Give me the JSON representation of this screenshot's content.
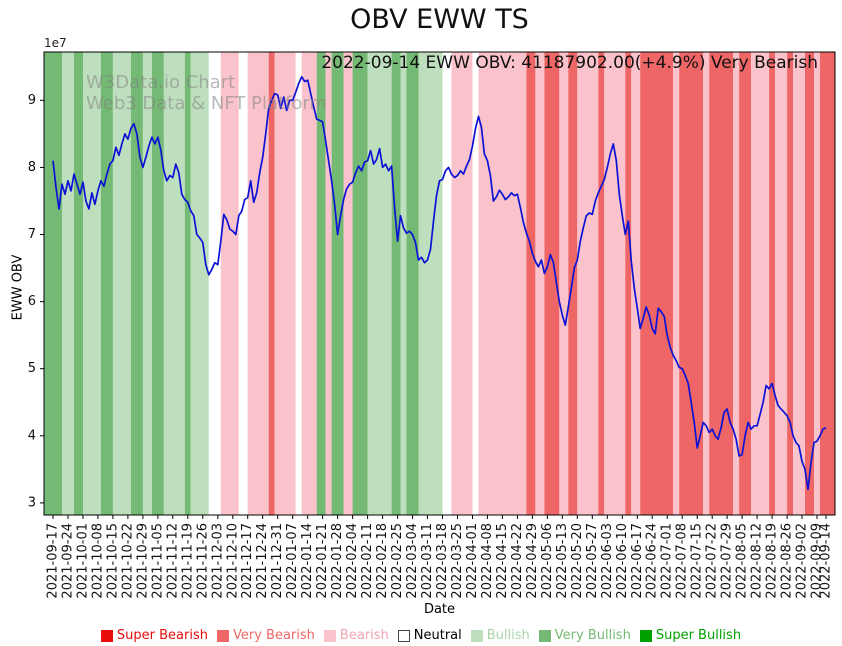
{
  "title": "OBV EWW TS",
  "annotation": "2022-09-14 EWW OBV: 41187902.00(+4.9%) Very Bearish",
  "watermark": {
    "line1": "W3Data.io Chart",
    "line2": "Web3 Data & NFT Platform"
  },
  "chart_data": {
    "type": "line",
    "title": "OBV EWW TS",
    "xlabel": "Date",
    "ylabel": "EWW OBV",
    "y_offset_label": "1e7",
    "y_unit": "1e7 (values below are in tens of millions)",
    "grid": false,
    "legend_position": "bottom-center",
    "ylim": [
      2.82,
      9.72
    ],
    "yticks": [
      3,
      4,
      5,
      6,
      7,
      8,
      9
    ],
    "xlim": [
      -3,
      261
    ],
    "x_tick_positions": [
      0,
      5,
      10,
      15,
      20,
      25,
      30,
      35,
      40,
      45,
      50,
      55,
      60,
      65,
      70,
      75,
      80,
      85,
      90,
      95,
      100,
      105,
      110,
      115,
      120,
      125,
      130,
      135,
      140,
      145,
      150,
      155,
      160,
      165,
      170,
      175,
      180,
      185,
      190,
      195,
      200,
      205,
      210,
      215,
      220,
      225,
      230,
      235,
      240,
      245,
      250,
      255,
      258
    ],
    "x_tick_labels": [
      "2021-09-17",
      "2021-09-24",
      "2021-10-01",
      "2021-10-08",
      "2021-10-15",
      "2021-10-22",
      "2021-10-29",
      "2021-11-05",
      "2021-11-12",
      "2021-11-19",
      "2021-11-26",
      "2021-12-03",
      "2021-12-10",
      "2021-12-17",
      "2021-12-24",
      "2021-12-31",
      "2022-01-07",
      "2022-01-14",
      "2022-01-21",
      "2022-01-28",
      "2022-02-04",
      "2022-02-11",
      "2022-02-18",
      "2022-02-25",
      "2022-03-04",
      "2022-03-11",
      "2022-03-18",
      "2022-03-25",
      "2022-04-01",
      "2022-04-08",
      "2022-04-15",
      "2022-04-22",
      "2022-04-29",
      "2022-05-06",
      "2022-05-13",
      "2022-05-20",
      "2022-05-27",
      "2022-06-03",
      "2022-06-10",
      "2022-06-17",
      "2022-06-24",
      "2022-07-01",
      "2022-07-08",
      "2022-07-15",
      "2022-07-22",
      "2022-07-29",
      "2022-08-05",
      "2022-08-12",
      "2022-08-19",
      "2022-08-26",
      "2022-09-02",
      "2022-09-09",
      "2022-09-14"
    ],
    "series": [
      {
        "name": "EWW OBV",
        "color": "#0b12d6",
        "values": [
          8.1,
          7.7,
          7.38,
          7.75,
          7.6,
          7.8,
          7.65,
          7.9,
          7.75,
          7.6,
          7.78,
          7.5,
          7.38,
          7.62,
          7.45,
          7.65,
          7.8,
          7.72,
          7.9,
          8.05,
          8.1,
          8.3,
          8.18,
          8.35,
          8.5,
          8.42,
          8.58,
          8.65,
          8.5,
          8.15,
          8.0,
          8.15,
          8.32,
          8.45,
          8.35,
          8.45,
          8.25,
          7.95,
          7.8,
          7.88,
          7.85,
          8.05,
          7.92,
          7.6,
          7.52,
          7.48,
          7.35,
          7.28,
          7.0,
          6.95,
          6.88,
          6.55,
          6.4,
          6.48,
          6.58,
          6.55,
          6.9,
          7.3,
          7.22,
          7.08,
          7.05,
          7.0,
          7.28,
          7.35,
          7.52,
          7.55,
          7.8,
          7.48,
          7.62,
          7.92,
          8.15,
          8.5,
          8.88,
          9.0,
          9.1,
          9.08,
          8.88,
          9.05,
          8.85,
          9.0,
          9.0,
          9.12,
          9.25,
          9.35,
          9.28,
          9.3,
          9.1,
          8.9,
          8.72,
          8.7,
          8.68,
          8.4,
          8.1,
          7.8,
          7.45,
          7.0,
          7.28,
          7.52,
          7.68,
          7.75,
          7.78,
          7.92,
          8.02,
          7.95,
          8.08,
          8.1,
          8.25,
          8.05,
          8.12,
          8.28,
          8.0,
          8.05,
          7.95,
          8.02,
          7.4,
          6.9,
          7.28,
          7.1,
          7.02,
          7.05,
          7.0,
          6.88,
          6.62,
          6.66,
          6.58,
          6.62,
          6.78,
          7.2,
          7.58,
          7.8,
          7.82,
          7.95,
          8.0,
          7.9,
          7.85,
          7.88,
          7.95,
          7.9,
          8.02,
          8.12,
          8.32,
          8.58,
          8.76,
          8.6,
          8.2,
          8.1,
          7.88,
          7.5,
          7.56,
          7.66,
          7.6,
          7.52,
          7.56,
          7.62,
          7.58,
          7.6,
          7.4,
          7.18,
          7.02,
          6.9,
          6.72,
          6.6,
          6.52,
          6.62,
          6.42,
          6.52,
          6.7,
          6.58,
          6.28,
          6.0,
          5.8,
          5.65,
          5.92,
          6.2,
          6.5,
          6.62,
          6.9,
          7.1,
          7.28,
          7.32,
          7.3,
          7.5,
          7.62,
          7.72,
          7.82,
          8.0,
          8.2,
          8.35,
          8.1,
          7.6,
          7.28,
          7.0,
          7.2,
          6.6,
          6.2,
          5.9,
          5.6,
          5.75,
          5.92,
          5.8,
          5.6,
          5.52,
          5.9,
          5.85,
          5.78,
          5.5,
          5.32,
          5.2,
          5.12,
          5.02,
          5.0,
          4.9,
          4.78,
          4.5,
          4.2,
          3.82,
          4.0,
          4.2,
          4.15,
          4.05,
          4.1,
          4.0,
          3.95,
          4.12,
          4.35,
          4.4,
          4.2,
          4.1,
          3.95,
          3.7,
          3.72,
          4.0,
          4.2,
          4.1,
          4.15,
          4.15,
          4.32,
          4.5,
          4.75,
          4.7,
          4.78,
          4.6,
          4.45,
          4.4,
          4.35,
          4.3,
          4.2,
          4.0,
          3.9,
          3.85,
          3.62,
          3.5,
          3.2,
          3.6,
          3.9,
          3.92,
          4.0,
          4.1,
          4.12
        ]
      }
    ],
    "sentiment_colors": {
      "super-bearish": "#ea0b0b",
      "very-bearish": "#ef6666",
      "bearish": "#fac3cb",
      "neutral": "#ffffff",
      "bullish": "#bedfbe",
      "very-bullish": "#74b974",
      "super-bullish": "#00a000"
    },
    "bands": [
      [
        -3,
        3,
        "very-bullish"
      ],
      [
        3,
        7,
        "bullish"
      ],
      [
        7,
        10,
        "very-bullish"
      ],
      [
        10,
        16,
        "bullish"
      ],
      [
        16,
        20,
        "very-bullish"
      ],
      [
        20,
        26,
        "bullish"
      ],
      [
        26,
        30,
        "very-bullish"
      ],
      [
        30,
        33,
        "bullish"
      ],
      [
        33,
        37,
        "very-bullish"
      ],
      [
        37,
        44,
        "bullish"
      ],
      [
        44,
        46,
        "very-bullish"
      ],
      [
        46,
        52,
        "bullish"
      ],
      [
        52,
        56,
        "neutral"
      ],
      [
        56,
        62,
        "bearish"
      ],
      [
        62,
        65,
        "neutral"
      ],
      [
        65,
        72,
        "bearish"
      ],
      [
        72,
        74,
        "very-bearish"
      ],
      [
        74,
        81,
        "bearish"
      ],
      [
        81,
        83,
        "neutral"
      ],
      [
        83,
        88,
        "bearish"
      ],
      [
        88,
        91,
        "very-bullish"
      ],
      [
        91,
        93,
        "bearish"
      ],
      [
        93,
        97,
        "very-bullish"
      ],
      [
        97,
        100,
        "bearish"
      ],
      [
        100,
        105,
        "very-bullish"
      ],
      [
        105,
        113,
        "bullish"
      ],
      [
        113,
        116,
        "very-bullish"
      ],
      [
        116,
        118,
        "bullish"
      ],
      [
        118,
        122,
        "very-bullish"
      ],
      [
        122,
        130,
        "bullish"
      ],
      [
        130,
        133,
        "neutral"
      ],
      [
        133,
        140,
        "bearish"
      ],
      [
        140,
        142,
        "neutral"
      ],
      [
        142,
        158,
        "bearish"
      ],
      [
        158,
        161,
        "very-bearish"
      ],
      [
        161,
        164,
        "bearish"
      ],
      [
        164,
        169,
        "very-bearish"
      ],
      [
        169,
        172,
        "bearish"
      ],
      [
        172,
        175,
        "very-bearish"
      ],
      [
        175,
        182,
        "bearish"
      ],
      [
        182,
        184,
        "very-bearish"
      ],
      [
        184,
        191,
        "bearish"
      ],
      [
        191,
        193,
        "very-bearish"
      ],
      [
        193,
        196,
        "bearish"
      ],
      [
        196,
        207,
        "very-bearish"
      ],
      [
        207,
        209,
        "bearish"
      ],
      [
        209,
        217,
        "very-bearish"
      ],
      [
        217,
        219,
        "bearish"
      ],
      [
        219,
        227,
        "very-bearish"
      ],
      [
        227,
        229,
        "bearish"
      ],
      [
        229,
        233,
        "very-bearish"
      ],
      [
        233,
        239,
        "bearish"
      ],
      [
        239,
        241,
        "very-bearish"
      ],
      [
        241,
        245,
        "bearish"
      ],
      [
        245,
        247,
        "very-bearish"
      ],
      [
        247,
        251,
        "bearish"
      ],
      [
        251,
        254,
        "very-bearish"
      ],
      [
        254,
        256,
        "bearish"
      ],
      [
        256,
        261,
        "very-bearish"
      ]
    ]
  },
  "legend": {
    "items": [
      {
        "id": "super-bearish",
        "label": "Super Bearish",
        "color": "#ea0b0b",
        "text_color": "#ea0b0b",
        "border": false
      },
      {
        "id": "very-bearish",
        "label": "Very Bearish",
        "color": "#ef6666",
        "text_color": "#ef6666",
        "border": false
      },
      {
        "id": "bearish",
        "label": "Bearish",
        "color": "#fac3cb",
        "text_color": "#f3a4b2",
        "border": false
      },
      {
        "id": "neutral",
        "label": "Neutral",
        "color": "#ffffff",
        "text_color": "#000000",
        "border": true
      },
      {
        "id": "bullish",
        "label": "Bullish",
        "color": "#bedfbe",
        "text_color": "#a8d4a8",
        "border": false
      },
      {
        "id": "very-bullish",
        "label": "Very Bullish",
        "color": "#74b974",
        "text_color": "#74b974",
        "border": false
      },
      {
        "id": "super-bullish",
        "label": "Super Bullish",
        "color": "#00a000",
        "text_color": "#00a000",
        "border": false
      }
    ]
  }
}
